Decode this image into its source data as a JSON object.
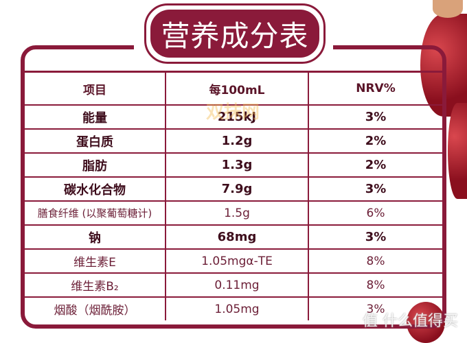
{
  "title": "营养成分表",
  "table": {
    "headers": [
      "项目",
      "每100mL",
      "NRV%"
    ],
    "rows": [
      {
        "item": "能量",
        "amount": "215kJ",
        "nrv": "3%",
        "bold": true
      },
      {
        "item": "蛋白质",
        "amount": "1.2g",
        "nrv": "2%",
        "bold": true
      },
      {
        "item": "脂肪",
        "amount": "1.3g",
        "nrv": "2%",
        "bold": true
      },
      {
        "item": "碳水化合物",
        "amount": "7.9g",
        "nrv": "3%",
        "bold": true
      },
      {
        "item": "膳食纤维 (以聚葡萄糖计)",
        "amount": "1.5g",
        "nrv": "6%",
        "bold": false
      },
      {
        "item": "钠",
        "amount": "68mg",
        "nrv": "3%",
        "bold": true
      },
      {
        "item": "维生素E",
        "amount": "1.05mgα-TE",
        "nrv": "8%",
        "bold": false
      },
      {
        "item": "维生素B₂",
        "amount": "0.11mg",
        "nrv": "8%",
        "bold": false
      },
      {
        "item": "烟酸（烟酰胺）",
        "amount": "1.05mg",
        "nrv": "3%",
        "bold": false
      }
    ]
  },
  "watermarks": {
    "center": "双抹网",
    "corner": "值 什么值得买"
  },
  "colors": {
    "frame": "#8a1a3a",
    "text": "#5a1428"
  }
}
